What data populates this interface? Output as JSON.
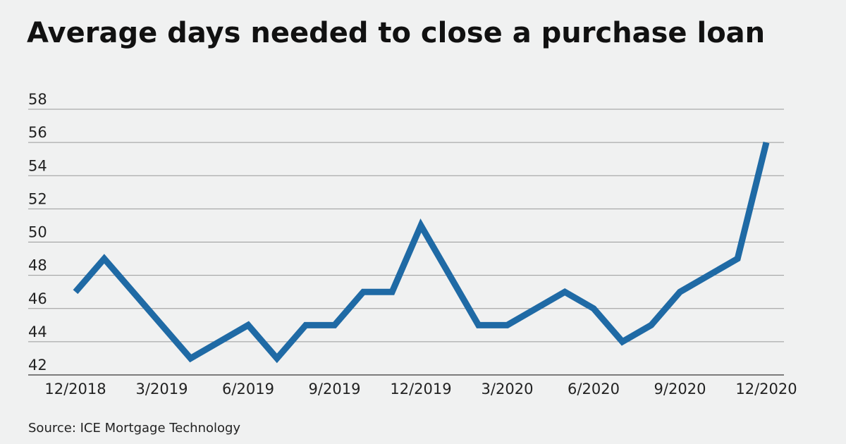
{
  "chart_data": {
    "type": "line",
    "title": "Average days needed to close a purchase loan",
    "source": "Source: ICE Mortgage Technology",
    "categories": [
      "12/2018",
      null,
      null,
      "3/2019",
      null,
      null,
      "6/2019",
      null,
      null,
      "9/2019",
      null,
      null,
      "12/2019",
      null,
      null,
      "3/2020",
      null,
      null,
      "6/2020",
      null,
      null,
      "9/2020",
      null,
      null,
      "12/2020"
    ],
    "series": [
      {
        "color": "#1f6aa5",
        "values": [
          47,
          49,
          47,
          45,
          43,
          44,
          45,
          43,
          45,
          45,
          47,
          47,
          51,
          48,
          45,
          45,
          46,
          47,
          46,
          44,
          45,
          47,
          48,
          49,
          56
        ]
      }
    ],
    "ylim": [
      42,
      58
    ],
    "yticks": [
      42,
      44,
      46,
      48,
      50,
      52,
      54,
      56,
      58
    ],
    "grid": true
  }
}
